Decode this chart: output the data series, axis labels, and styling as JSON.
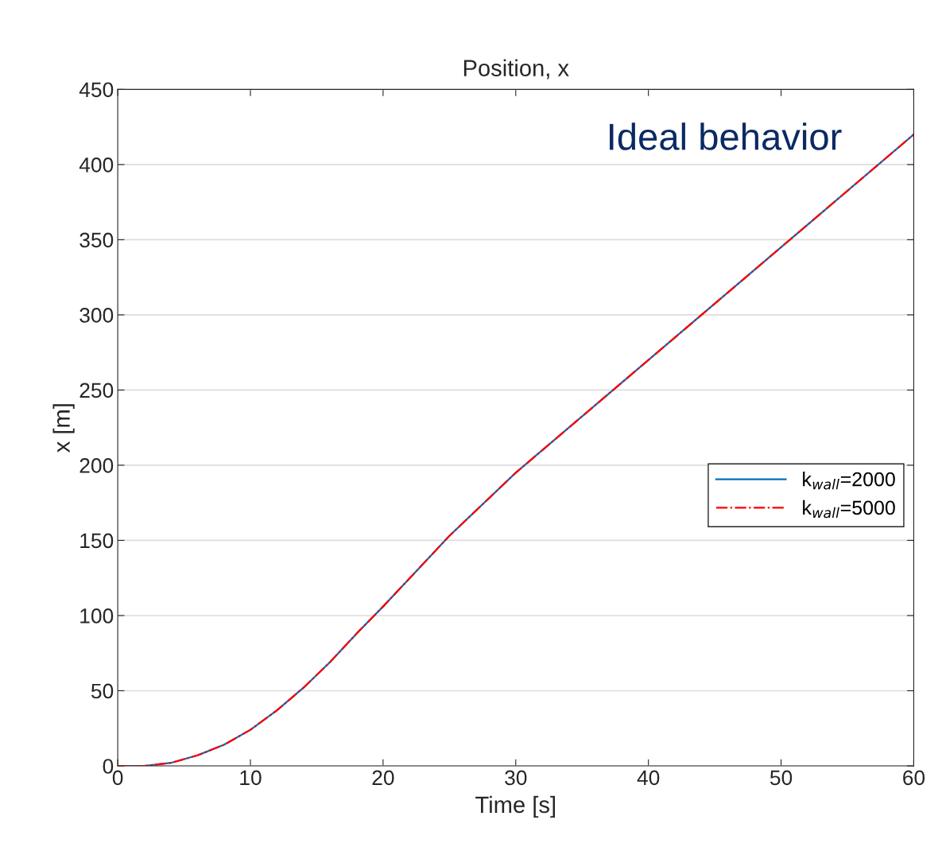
{
  "chart_data": {
    "type": "line",
    "title": "Position, x",
    "xlabel": "Time [s]",
    "ylabel": "x [m]",
    "x": [
      0,
      2,
      3,
      4,
      6,
      8,
      10,
      12,
      14,
      16,
      18,
      20,
      25,
      30,
      40,
      50,
      60
    ],
    "series": [
      {
        "name": "k$_{wall}$=2000",
        "color": "#0072bd",
        "line_style": "solid",
        "values": [
          0,
          0,
          1,
          2,
          7,
          14,
          24,
          37,
          52,
          69,
          88,
          106,
          153,
          195,
          270,
          345,
          420
        ]
      },
      {
        "name": "k$_{wall}$=5000",
        "color": "#ff0000",
        "line_style": "dashdot",
        "values": [
          0,
          0,
          1,
          2,
          7,
          14,
          24,
          37,
          52,
          69,
          88,
          106,
          153,
          195,
          270,
          345,
          420
        ]
      }
    ],
    "xlim": [
      0,
      60
    ],
    "xticks": [
      0,
      10,
      20,
      30,
      40,
      50,
      60
    ],
    "ylim": [
      0,
      450
    ],
    "yticks": [
      0,
      50,
      100,
      150,
      200,
      250,
      300,
      350,
      400,
      450
    ],
    "grid": "y",
    "legend": "right",
    "marker": "none",
    "annotations": [
      "Ideal behavior"
    ]
  }
}
